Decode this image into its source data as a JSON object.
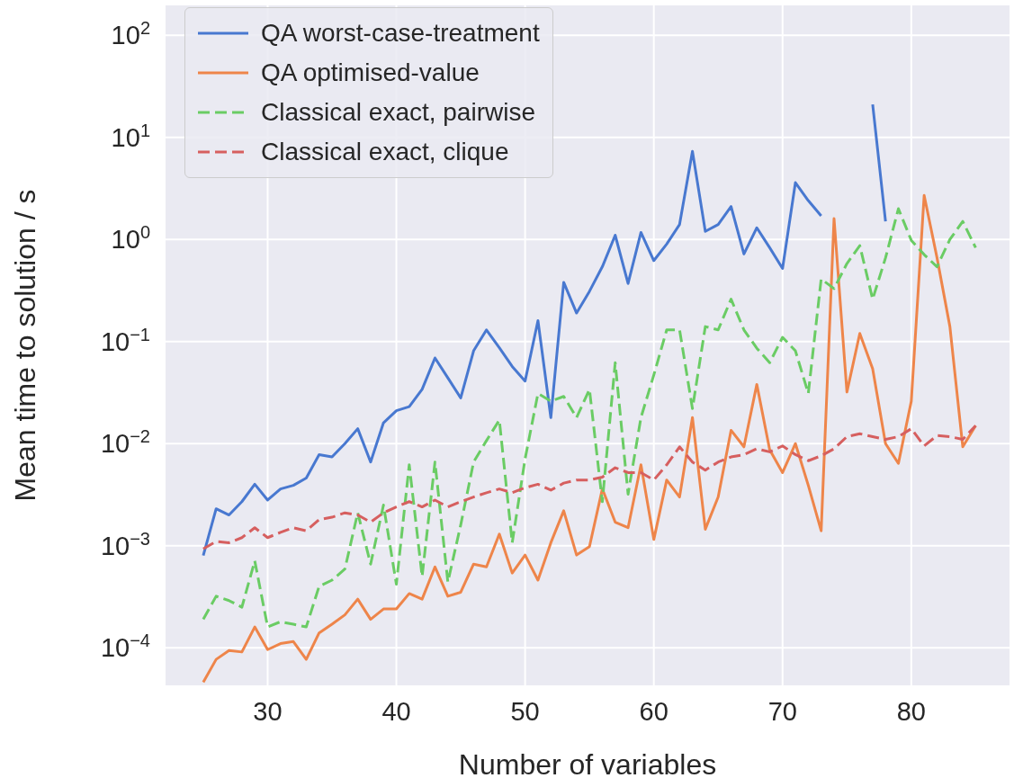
{
  "chart_data": {
    "type": "line",
    "xlabel": "Number of variables",
    "ylabel": "Mean time to solution / s",
    "x": [
      25,
      26,
      27,
      28,
      29,
      30,
      31,
      32,
      33,
      34,
      35,
      36,
      37,
      38,
      39,
      40,
      41,
      42,
      43,
      44,
      45,
      46,
      47,
      48,
      49,
      50,
      51,
      52,
      53,
      54,
      55,
      56,
      57,
      58,
      59,
      60,
      61,
      62,
      63,
      64,
      65,
      66,
      67,
      68,
      69,
      70,
      71,
      72,
      73,
      74,
      75,
      76,
      77,
      78,
      79,
      80,
      81,
      82,
      83,
      84,
      85
    ],
    "series": [
      {
        "name": "QA worst-case-treatment",
        "color": "#4878d0",
        "line_style": "solid",
        "values": [
          0.0008,
          0.0023,
          0.002,
          0.0027,
          0.004,
          0.0028,
          0.0036,
          0.0039,
          0.0046,
          0.0078,
          0.0074,
          0.01,
          0.014,
          0.0066,
          0.016,
          0.021,
          0.023,
          0.034,
          0.069,
          0.044,
          0.028,
          0.081,
          0.13,
          0.087,
          0.057,
          0.041,
          0.16,
          0.018,
          0.38,
          0.19,
          0.31,
          0.54,
          1.1,
          0.37,
          1.17,
          0.62,
          0.9,
          1.4,
          7.3,
          1.2,
          1.4,
          2.1,
          0.72,
          1.3,
          0.83,
          0.52,
          3.6,
          2.4,
          1.7,
          null,
          null,
          null,
          21,
          1.5,
          null,
          null,
          null,
          null,
          null,
          null,
          null
        ]
      },
      {
        "name": "QA optimised-value",
        "color": "#ee854a",
        "line_style": "solid",
        "values": [
          4.6e-05,
          7.7e-05,
          9.4e-05,
          9.1e-05,
          0.00016,
          9.6e-05,
          0.00011,
          0.000115,
          7.7e-05,
          0.00014,
          0.00017,
          0.00021,
          0.0003,
          0.00019,
          0.00024,
          0.00024,
          0.00034,
          0.0003,
          0.00062,
          0.00032,
          0.00035,
          0.00066,
          0.00062,
          0.0013,
          0.00054,
          0.00081,
          0.00046,
          0.00107,
          0.0022,
          0.00081,
          0.00098,
          0.0036,
          0.0017,
          0.0015,
          0.0062,
          0.00115,
          0.0044,
          0.003,
          0.018,
          0.00145,
          0.003,
          0.0135,
          0.0093,
          0.038,
          0.0087,
          0.0052,
          0.01,
          0.0039,
          0.0014,
          1.6,
          0.032,
          0.12,
          0.054,
          0.01,
          0.0064,
          0.026,
          2.7,
          0.66,
          0.14,
          0.0093,
          0.015
        ]
      },
      {
        "name": "Classical exact, pairwise",
        "color": "#6acc64",
        "line_style": "dashed",
        "values": [
          0.00019,
          0.00032,
          0.00029,
          0.00025,
          0.00071,
          0.00016,
          0.00018,
          0.00017,
          0.00016,
          0.0004,
          0.00046,
          0.00059,
          0.0021,
          0.00066,
          0.0025,
          0.00042,
          0.0062,
          0.0005,
          0.0066,
          0.00044,
          0.0016,
          0.0066,
          0.0107,
          0.017,
          0.00107,
          0.0071,
          0.031,
          0.026,
          0.029,
          0.018,
          0.034,
          0.0027,
          0.062,
          0.0032,
          0.018,
          0.047,
          0.13,
          0.13,
          0.022,
          0.14,
          0.13,
          0.26,
          0.13,
          0.086,
          0.062,
          0.11,
          0.081,
          0.031,
          0.41,
          0.33,
          0.58,
          0.87,
          0.26,
          0.66,
          2.0,
          0.98,
          0.71,
          0.54,
          1.0,
          1.5,
          0.83
        ]
      },
      {
        "name": "Classical exact, clique",
        "color": "#d65f5f",
        "line_style": "dashed",
        "values": [
          0.00093,
          0.0011,
          0.00107,
          0.0012,
          0.0015,
          0.0012,
          0.00135,
          0.0015,
          0.0014,
          0.0018,
          0.0019,
          0.0021,
          0.002,
          0.0017,
          0.0021,
          0.0024,
          0.0027,
          0.0024,
          0.0028,
          0.0024,
          0.0027,
          0.003,
          0.0033,
          0.0036,
          0.0033,
          0.0037,
          0.004,
          0.0035,
          0.0041,
          0.0044,
          0.0044,
          0.0047,
          0.0058,
          0.0052,
          0.0052,
          0.0044,
          0.0062,
          0.0093,
          0.0066,
          0.0055,
          0.0066,
          0.0074,
          0.0078,
          0.0089,
          0.0083,
          0.0095,
          0.0078,
          0.0068,
          0.0076,
          0.0089,
          0.0117,
          0.0125,
          0.0117,
          0.011,
          0.0117,
          0.014,
          0.0095,
          0.012,
          0.0117,
          0.011,
          0.015
        ]
      }
    ],
    "xlim": [
      22,
      87.7
    ],
    "xticks": [
      30,
      40,
      50,
      60,
      70,
      80
    ],
    "ylim": [
      4.2e-05,
      200
    ],
    "yticks": [
      {
        "value": 0.0001,
        "label": "10$^{−4}$"
      },
      {
        "value": 0.001,
        "label": "10$^{−3}$"
      },
      {
        "value": 0.01,
        "label": "10$^{−2}$"
      },
      {
        "value": 0.1,
        "label": "10$^{−1}$"
      },
      {
        "value": 1,
        "label": "10$^{0}$"
      },
      {
        "value": 10,
        "label": "10$^{1}$"
      },
      {
        "value": 100,
        "label": "10$^{2}$"
      }
    ],
    "log": "y",
    "grid": true,
    "legend": "top left",
    "marker": "none"
  }
}
